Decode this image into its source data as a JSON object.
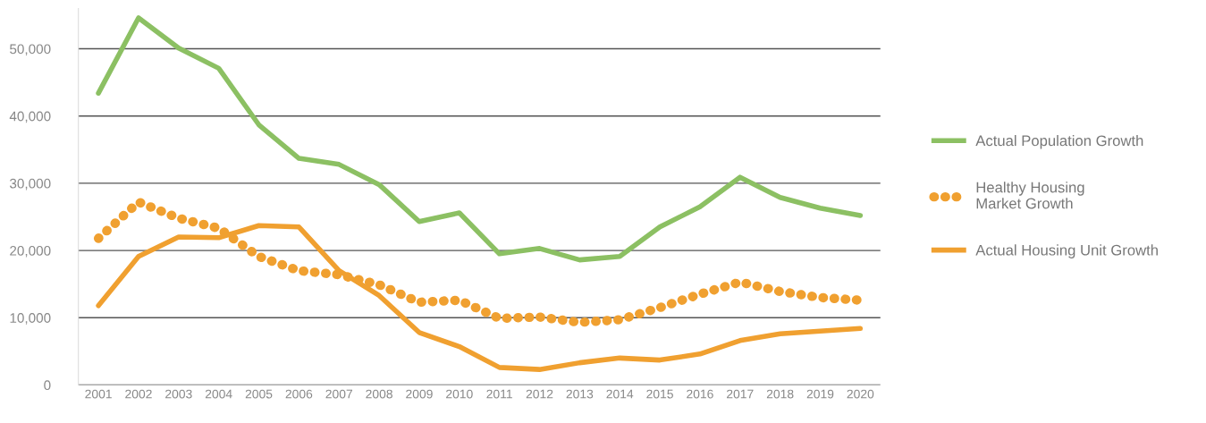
{
  "chart_data": {
    "type": "line",
    "categories": [
      "2001",
      "2002",
      "2003",
      "2004",
      "2005",
      "2006",
      "2007",
      "2008",
      "2009",
      "2010",
      "2011",
      "2012",
      "2013",
      "2014",
      "2015",
      "2016",
      "2017",
      "2018",
      "2019",
      "2020"
    ],
    "series": [
      {
        "name": "Actual Population Growth",
        "color": "#8cc063",
        "line_style": "solid",
        "values": [
          43400,
          54600,
          50100,
          47100,
          38700,
          33700,
          32800,
          29800,
          24300,
          25600,
          19500,
          20300,
          18600,
          19100,
          23500,
          26500,
          30900,
          27900,
          26300,
          25200
        ]
      },
      {
        "name": "Healthy Housing\nMarket Growth",
        "color": "#f0a030",
        "line_style": "dotted",
        "values": [
          21800,
          27200,
          24800,
          23300,
          19100,
          17000,
          16400,
          14900,
          12300,
          12600,
          9900,
          10100,
          9300,
          9700,
          11500,
          13500,
          15300,
          13900,
          13000,
          12600
        ]
      },
      {
        "name": "Actual Housing Unit Growth",
        "color": "#f0a030",
        "line_style": "solid",
        "values": [
          11800,
          19100,
          22000,
          21900,
          23700,
          23500,
          17000,
          13300,
          7800,
          5700,
          2600,
          2300,
          3300,
          4000,
          3700,
          4600,
          6600,
          7600,
          8000,
          8400
        ]
      }
    ],
    "ylim": [
      0,
      56000
    ],
    "yticks": [
      0,
      {
        "value": 10000,
        "label": "10,000"
      },
      {
        "value": 20000,
        "label": "20,000"
      },
      {
        "value": 30000,
        "label": "30,000"
      },
      {
        "value": 40000,
        "label": "40,000"
      },
      {
        "value": 50000,
        "label": "50,000"
      }
    ],
    "grid": "y",
    "legend": "right",
    "marker": "none"
  }
}
